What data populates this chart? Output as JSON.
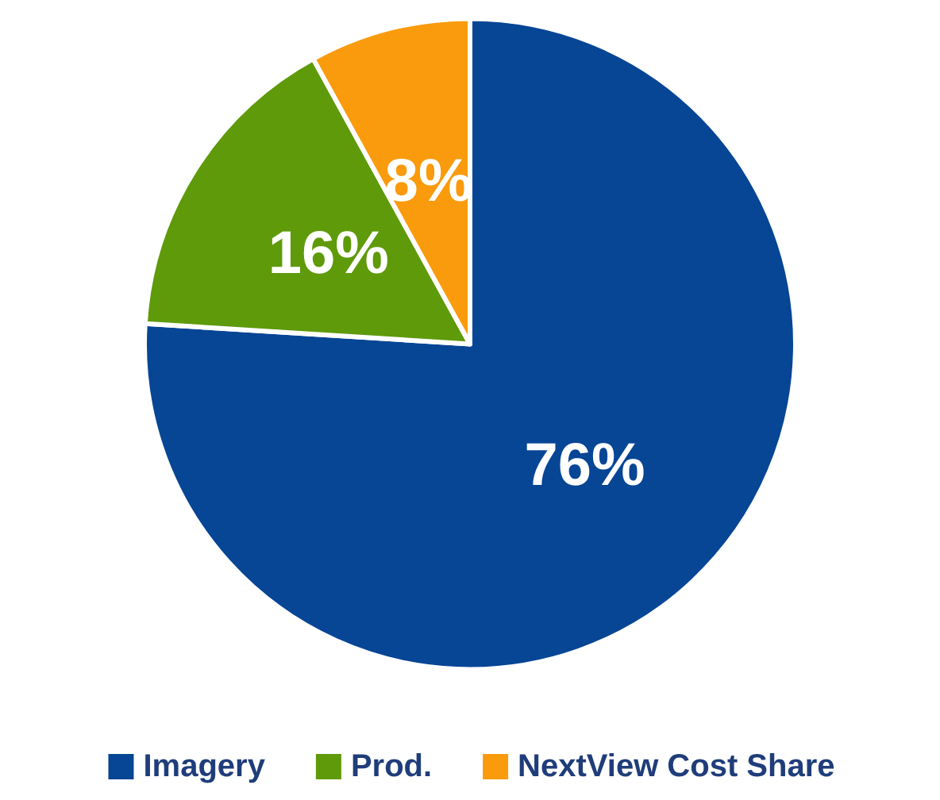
{
  "chart_data": {
    "type": "pie",
    "categories": [
      "Imagery",
      "Prod.",
      "NextView Cost Share"
    ],
    "values": [
      76,
      16,
      8
    ],
    "colors": [
      "#074595",
      "#5f9a0a",
      "#f99b0c"
    ],
    "value_labels": [
      "76%",
      "16%",
      "8%"
    ],
    "legend": "bottom"
  }
}
